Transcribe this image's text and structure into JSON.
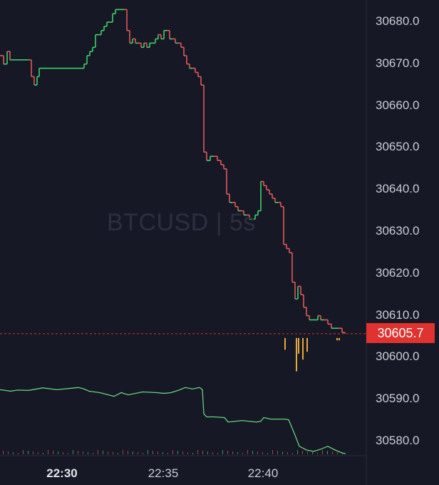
{
  "watermark": "BTCUSD | 5s",
  "last_price_label": "30605.7",
  "colors": {
    "background": "#161825",
    "up": "#3fcf6b",
    "down": "#e05a5a",
    "line": "#66d27a",
    "price_tag": "#e0322f",
    "volume": "#e6a93c",
    "axis_text": "#c9ccd6"
  },
  "chart_data": {
    "type": "line",
    "title": "BTCUSD | 5s",
    "y_axis_ticks": [
      "30680.0",
      "30670.0",
      "30660.0",
      "30650.0",
      "30640.0",
      "30630.0",
      "30620.0",
      "30610.0",
      "30600.0",
      "30590.0",
      "30580.0"
    ],
    "y_range": [
      30577.5,
      30684.5
    ],
    "x_axis_ticks": [
      {
        "label": "22:30",
        "bold": true
      },
      {
        "label": "22:35",
        "bold": false
      },
      {
        "label": "22:40",
        "bold": false
      }
    ],
    "last_price": 30605.7,
    "series": [
      {
        "x": [
          0,
          5,
          10,
          14,
          20,
          30,
          40,
          44,
          48,
          52,
          55,
          60,
          70,
          80,
          90,
          100,
          110,
          118,
          122,
          126,
          130,
          134,
          138,
          142,
          146,
          150,
          154,
          158,
          162,
          166,
          170,
          174,
          178,
          182,
          186,
          190,
          194,
          198,
          202,
          206,
          210,
          214,
          218,
          222,
          226,
          230,
          234,
          238,
          242,
          246,
          250,
          254,
          258,
          262,
          266,
          270,
          274,
          278,
          282,
          286,
          290,
          295,
          300,
          305,
          310,
          314,
          318,
          322,
          326,
          330,
          334,
          338,
          342,
          346,
          350,
          354,
          358,
          362,
          366,
          370,
          374,
          378,
          382,
          386,
          390,
          394,
          398,
          402,
          406,
          410,
          414,
          418,
          422,
          426,
          430,
          434,
          438,
          442,
          446,
          450,
          455,
          460,
          465,
          470,
          475,
          480,
          484
        ],
        "y": [
          30672,
          30670,
          30673,
          30671,
          30671,
          30671,
          30671,
          30667,
          30665,
          30667,
          30669,
          30669,
          30669,
          30669,
          30669,
          30669,
          30669,
          30670,
          30672,
          30673,
          30674,
          30677,
          30677,
          30678,
          30679,
          30680,
          30680,
          30682,
          30683,
          30683,
          30683,
          30683,
          30678,
          30675,
          30676,
          30675,
          30675,
          30674,
          30675,
          30674,
          30675,
          30675,
          30676,
          30677,
          30676,
          30678,
          30678,
          30676,
          30676,
          30675,
          30675,
          30674,
          30672,
          30670,
          30669,
          30669,
          30668,
          30667,
          30665,
          30649,
          30647,
          30648,
          30648,
          30647,
          30646,
          30645,
          30639,
          30637,
          30637,
          30636,
          30635,
          30635,
          30634,
          30634,
          30633,
          30633,
          30634,
          30635,
          30642,
          30641,
          30640,
          30639,
          30638,
          30637,
          30637,
          30636,
          30627,
          30626,
          30625,
          30618,
          30614,
          30617,
          30615,
          30612,
          30610,
          30609,
          30609,
          30609,
          30610,
          30609,
          30609,
          30608,
          30607,
          30607,
          30607,
          30606,
          30605.7
        ]
      }
    ],
    "indicator": {
      "x": [
        0,
        15,
        25,
        40,
        60,
        80,
        100,
        110,
        118,
        125,
        140,
        160,
        170,
        180,
        200,
        220,
        230,
        240,
        250,
        260,
        270,
        280,
        284,
        286,
        290,
        300,
        315,
        320,
        340,
        360,
        366,
        370,
        380,
        400,
        405,
        412,
        420,
        430,
        440,
        450,
        460,
        470,
        480,
        485
      ],
      "level": [
        0.87,
        0.85,
        0.865,
        0.86,
        0.895,
        0.87,
        0.89,
        0.9,
        0.88,
        0.85,
        0.83,
        0.78,
        0.83,
        0.8,
        0.84,
        0.83,
        0.82,
        0.83,
        0.86,
        0.9,
        0.88,
        0.9,
        0.87,
        0.54,
        0.5,
        0.5,
        0.49,
        0.43,
        0.45,
        0.43,
        0.44,
        0.49,
        0.47,
        0.47,
        0.46,
        0.3,
        0.1,
        0.05,
        0.03,
        0.06,
        0.1,
        0.05,
        0.01,
        0.0
      ]
    },
    "volume_bars": {
      "x": [
        399,
        415,
        418,
        424,
        430,
        472,
        475
      ],
      "value": [
        0.3,
        0.85,
        0.4,
        0.55,
        0.35,
        0.06,
        0.06
      ]
    }
  }
}
